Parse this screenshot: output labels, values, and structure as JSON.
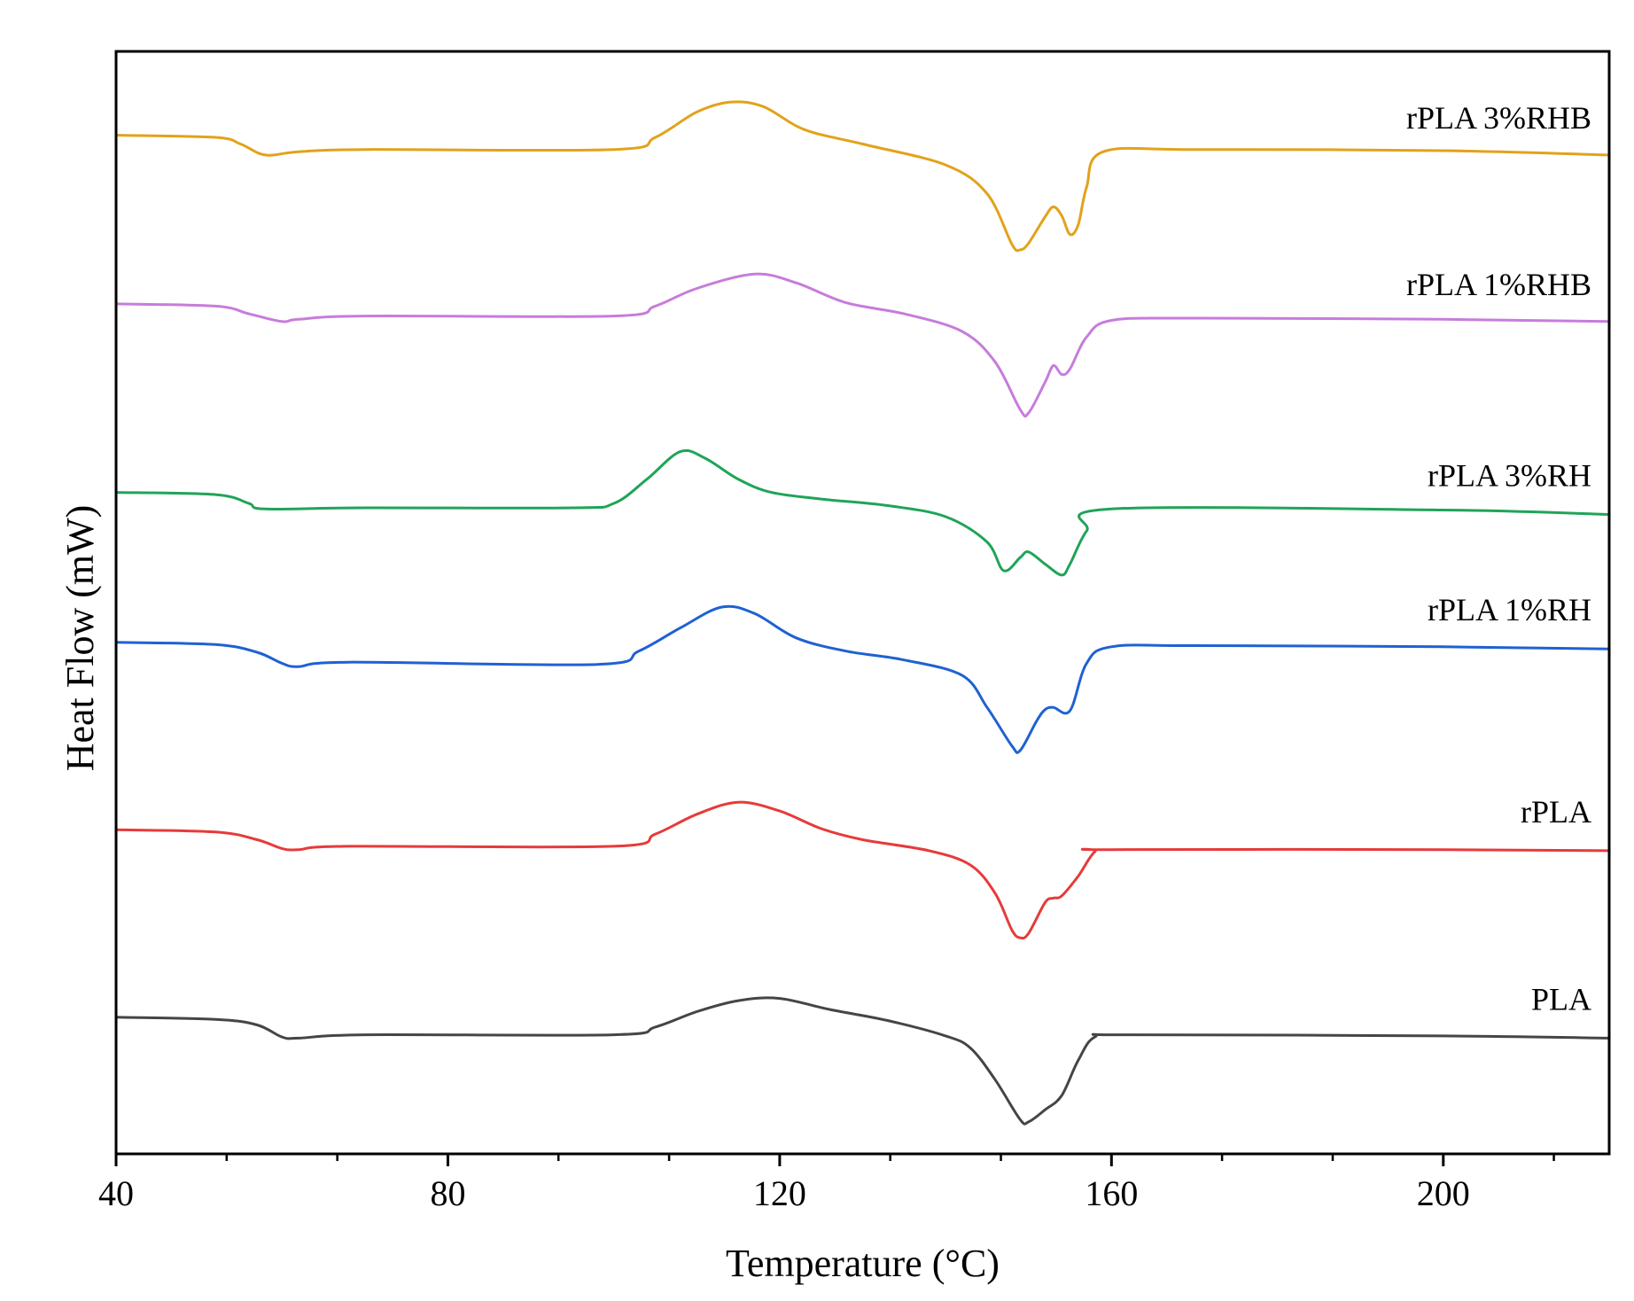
{
  "chart_data": {
    "type": "line",
    "title": "",
    "xlabel": "Temperature (°C)",
    "ylabel": "Heat Flow (mW)",
    "xlim": [
      40,
      220
    ],
    "ylim": [
      0,
      1000
    ],
    "x_major_ticks": [
      40,
      80,
      120,
      160,
      200
    ],
    "x_tick_labels": [
      "40",
      "80",
      "120",
      "160",
      "200"
    ],
    "x_minor_ticks": [
      53.33,
      66.67,
      93.33,
      106.67,
      133.33,
      146.67,
      173.33,
      186.67,
      213.33
    ],
    "y_tick_labels": false,
    "grid": false,
    "legend": "none (series labelled inline at right)",
    "series": [
      {
        "name": "rPLA 3%RHB",
        "color": "#E2A21B",
        "points": [
          [
            40,
            924
          ],
          [
            52,
            922
          ],
          [
            55,
            916
          ],
          [
            58,
            906
          ],
          [
            62,
            909
          ],
          [
            70,
            911
          ],
          [
            100,
            911
          ],
          [
            105,
            922
          ],
          [
            110,
            945
          ],
          [
            114,
            954
          ],
          [
            118,
            950
          ],
          [
            123,
            929
          ],
          [
            130,
            916
          ],
          [
            140,
            897
          ],
          [
            145,
            871
          ],
          [
            148,
            825
          ],
          [
            149,
            820
          ],
          [
            150,
            826
          ],
          [
            152,
            850
          ],
          [
            153,
            859
          ],
          [
            154,
            851
          ],
          [
            155,
            834
          ],
          [
            156,
            843
          ],
          [
            157,
            877
          ],
          [
            159,
            909
          ],
          [
            170,
            911
          ],
          [
            200,
            910
          ],
          [
            220,
            906
          ]
        ]
      },
      {
        "name": "rPLA 1%RHB",
        "color": "#C77CDB",
        "points": [
          [
            40,
            771
          ],
          [
            52,
            769
          ],
          [
            56,
            762
          ],
          [
            60,
            755
          ],
          [
            62,
            757
          ],
          [
            70,
            760
          ],
          [
            100,
            760
          ],
          [
            105,
            769
          ],
          [
            110,
            785
          ],
          [
            117,
            798
          ],
          [
            122,
            790
          ],
          [
            128,
            772
          ],
          [
            135,
            762
          ],
          [
            142,
            746
          ],
          [
            146,
            718
          ],
          [
            149,
            675
          ],
          [
            150,
            672
          ],
          [
            152,
            700
          ],
          [
            153,
            715
          ],
          [
            154,
            707
          ],
          [
            155,
            712
          ],
          [
            157,
            741
          ],
          [
            160,
            756
          ],
          [
            170,
            758
          ],
          [
            200,
            757
          ],
          [
            220,
            755
          ]
        ]
      },
      {
        "name": "rPLA 3%RH",
        "color": "#20A458",
        "points": [
          [
            40,
            600
          ],
          [
            52,
            598
          ],
          [
            56,
            590
          ],
          [
            58,
            585
          ],
          [
            70,
            586
          ],
          [
            95,
            586
          ],
          [
            100,
            590
          ],
          [
            104,
            612
          ],
          [
            108,
            637
          ],
          [
            111,
            631
          ],
          [
            115,
            612
          ],
          [
            119,
            600
          ],
          [
            125,
            594
          ],
          [
            133,
            588
          ],
          [
            140,
            578
          ],
          [
            145,
            555
          ],
          [
            147,
            529
          ],
          [
            149,
            541
          ],
          [
            150,
            546
          ],
          [
            152,
            535
          ],
          [
            154,
            525
          ],
          [
            155,
            535
          ],
          [
            157,
            565
          ],
          [
            160,
            585
          ],
          [
            200,
            584
          ],
          [
            220,
            580
          ]
        ]
      },
      {
        "name": "rPLA 1%RH",
        "color": "#1F61D2",
        "points": [
          [
            40,
            464
          ],
          [
            52,
            462
          ],
          [
            57,
            455
          ],
          [
            60,
            445
          ],
          [
            62,
            442
          ],
          [
            68,
            446
          ],
          [
            98,
            444
          ],
          [
            103,
            456
          ],
          [
            108,
            477
          ],
          [
            113,
            496
          ],
          [
            117,
            490
          ],
          [
            122,
            468
          ],
          [
            128,
            456
          ],
          [
            135,
            448
          ],
          [
            142,
            434
          ],
          [
            145,
            405
          ],
          [
            148,
            370
          ],
          [
            149,
            366
          ],
          [
            151,
            393
          ],
          [
            152,
            403
          ],
          [
            153,
            405
          ],
          [
            155,
            402
          ],
          [
            157,
            445
          ],
          [
            160,
            460
          ],
          [
            170,
            461
          ],
          [
            200,
            460
          ],
          [
            220,
            458
          ]
        ]
      },
      {
        "name": "rPLA",
        "color": "#E73A3A",
        "points": [
          [
            40,
            294
          ],
          [
            52,
            292
          ],
          [
            57,
            285
          ],
          [
            60,
            277
          ],
          [
            62,
            276
          ],
          [
            68,
            279
          ],
          [
            100,
            279
          ],
          [
            105,
            290
          ],
          [
            110,
            308
          ],
          [
            115,
            319
          ],
          [
            120,
            311
          ],
          [
            125,
            295
          ],
          [
            130,
            285
          ],
          [
            138,
            275
          ],
          [
            143,
            262
          ],
          [
            146,
            236
          ],
          [
            148,
            203
          ],
          [
            149,
            196
          ],
          [
            150,
            200
          ],
          [
            152,
            228
          ],
          [
            153,
            232
          ],
          [
            154,
            234
          ],
          [
            156,
            252
          ],
          [
            158,
            274
          ],
          [
            160,
            276
          ],
          [
            200,
            276
          ],
          [
            220,
            275
          ]
        ]
      },
      {
        "name": "PLA",
        "color": "#454545",
        "points": [
          [
            40,
            124
          ],
          [
            52,
            122
          ],
          [
            57,
            117
          ],
          [
            60,
            106
          ],
          [
            62,
            105
          ],
          [
            70,
            108
          ],
          [
            100,
            108
          ],
          [
            105,
            115
          ],
          [
            110,
            129
          ],
          [
            115,
            139
          ],
          [
            120,
            141
          ],
          [
            126,
            131
          ],
          [
            133,
            121
          ],
          [
            140,
            107
          ],
          [
            143,
            96
          ],
          [
            146,
            67
          ],
          [
            149,
            31
          ],
          [
            150,
            29
          ],
          [
            152,
            40
          ],
          [
            154,
            53
          ],
          [
            156,
            85
          ],
          [
            158,
            106
          ],
          [
            162,
            108
          ],
          [
            200,
            107
          ],
          [
            220,
            105
          ]
        ]
      }
    ]
  }
}
